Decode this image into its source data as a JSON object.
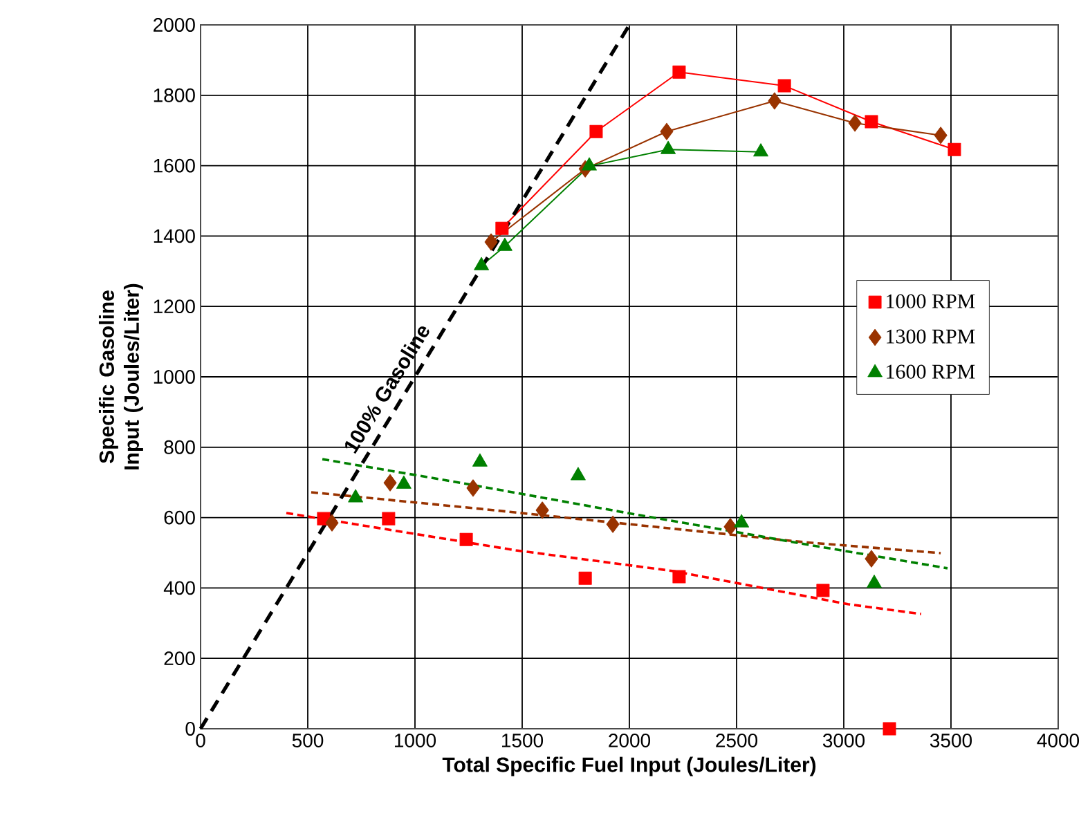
{
  "chart_data": {
    "type": "line",
    "xlabel": "Total Specific Fuel Input (Joules/Liter)",
    "ylabel": "Specific Gasoline Input (Joules/Liter)",
    "xlim": [
      0,
      4000
    ],
    "xticks": [
      0,
      500,
      1000,
      1500,
      2000,
      2500,
      3000,
      3500,
      4000
    ],
    "ylim": [
      0,
      2000
    ],
    "yticks": [
      0,
      200,
      400,
      600,
      800,
      1000,
      1200,
      1400,
      1600,
      1800,
      2000
    ],
    "grid": true,
    "legend": "right",
    "series": [
      {
        "name": "1000 RPM",
        "color": "#ff0000",
        "marker": "square",
        "x": [
          1406,
          1845,
          2232,
          2723,
          3129,
          3516
        ],
        "values": [
          1422,
          1697,
          1866,
          1827,
          1725,
          1646
        ]
      },
      {
        "name": "1300 RPM",
        "color": "#993300",
        "marker": "diamond",
        "x": [
          1355,
          1794,
          2174,
          2677,
          3052,
          3452
        ],
        "values": [
          1383,
          1591,
          1697,
          1784,
          1721,
          1686
        ]
      },
      {
        "name": "1600 RPM",
        "color": "#008000",
        "marker": "triangle",
        "x": [
          1310,
          1419,
          1813,
          2181,
          2613
        ],
        "values": [
          1316,
          1371,
          1599,
          1646,
          1639
        ]
      },
      {
        "type": "scatter",
        "color": "#ff0000",
        "marker": "square",
        "x": [
          574,
          877,
          1239,
          1794,
          2232,
          2903,
          3213
        ],
        "values": [
          597,
          597,
          538,
          428,
          432,
          393,
          0
        ]
      },
      {
        "type": "scatter",
        "color": "#993300",
        "marker": "diamond",
        "x": [
          613,
          884,
          1271,
          1594,
          1923,
          2471,
          3129
        ],
        "values": [
          585,
          699,
          684,
          621,
          581,
          574,
          483
        ]
      },
      {
        "type": "scatter",
        "color": "#008000",
        "marker": "triangle",
        "x": [
          723,
          948,
          1303,
          1761,
          2523,
          3142
        ],
        "values": [
          656,
          695,
          758,
          719,
          585,
          413
        ]
      },
      {
        "color": "#ff0000",
        "marker": "none",
        "line_style": "dashed",
        "x": [
          400,
          723,
          1471,
          2206,
          3019,
          3361
        ],
        "values": [
          613,
          581,
          507,
          448,
          354,
          326
        ]
      },
      {
        "color": "#993300",
        "marker": "none",
        "line_style": "dashed",
        "x": [
          516,
          1303,
          2052,
          2819,
          3452
        ],
        "values": [
          672,
          625,
          578,
          530,
          499
        ]
      },
      {
        "color": "#008000",
        "marker": "none",
        "line_style": "dashed",
        "x": [
          568,
          1174,
          1955,
          2871,
          3484
        ],
        "values": [
          766,
          703,
          617,
          519,
          456
        ]
      },
      {
        "name": "100% Gasoline",
        "color": "#000000",
        "marker": "none",
        "line_style": "dashed",
        "x": [
          0,
          2000
        ],
        "values": [
          0,
          2000
        ]
      }
    ]
  }
}
